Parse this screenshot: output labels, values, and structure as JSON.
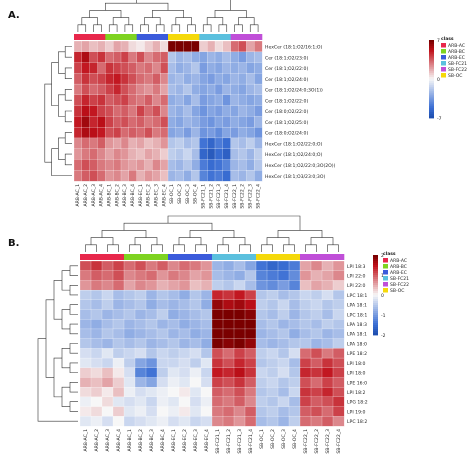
{
  "panels": [
    {
      "label": "A.",
      "chart_data": {
        "type": "heatmap",
        "title": "",
        "columns": [
          "ARB-AC_1",
          "ARB-AC_2",
          "ARB-AC_3",
          "ARB-AC_4",
          "ARB-BC_1",
          "ARB-BC_2",
          "ARB-BC_3",
          "ARB-BC_4",
          "ARB-EC_1",
          "ARB-EC_2",
          "ARB-EC_3",
          "ARB-EC_4",
          "SB-OC_1",
          "SB-OC_2",
          "SB-OC_3",
          "SB-OC_4",
          "SB-FC21_1",
          "SB-FC21_2",
          "SB-FC21_3",
          "SB-FC21_4",
          "SB-FC22_1",
          "SB-FC22_2",
          "SB-FC22_3",
          "SB-FC22_4"
        ],
        "column_class": [
          "ARB-AC",
          "ARB-AC",
          "ARB-AC",
          "ARB-AC",
          "ARB-BC",
          "ARB-BC",
          "ARB-BC",
          "ARB-BC",
          "ARB-EC",
          "ARB-EC",
          "ARB-EC",
          "ARB-EC",
          "SB-OC",
          "SB-OC",
          "SB-OC",
          "SB-OC",
          "SB-FC21",
          "SB-FC21",
          "SB-FC21",
          "SB-FC21",
          "SB-FC22",
          "SB-FC22",
          "SB-FC22",
          "SB-FC22"
        ],
        "rows": [
          "HexCer (18:1;O2/16:1;O)",
          "Cer (18:1;O2/23:0)",
          "Cer (18:1;O2/22:0)",
          "Cer (18:1;O2/24:0)",
          "Cer (18:1;O2/24:0;3O(1))",
          "Cer (18:1;O2/22:0)",
          "Cer (18:0;O2/22:0)",
          "Cer (18:1;O2/25:0)",
          "Cer (18:0;O2/24:0)",
          "HexCer (18:1;O2/22:0;O)",
          "HexCer (18:1;O2/24:0;O)",
          "HexCer (18:1;O2/22:0;3O(2O))",
          "HexCer (18:1;O3/23:0;3O)"
        ],
        "values": [
          [
            0.5,
            0.6,
            0.4,
            0.5,
            0.3,
            0.6,
            0.5,
            0.2,
            0.1,
            0.3,
            0.5,
            0.2,
            3.5,
            4.2,
            3.8,
            3.0,
            0.3,
            0.5,
            0.2,
            0.4,
            1.0,
            1.2,
            0.6,
            0.9
          ],
          [
            1.5,
            1.8,
            1.2,
            1.4,
            1.0,
            1.1,
            1.3,
            0.9,
            1.2,
            0.8,
            1.0,
            1.1,
            -0.6,
            -0.8,
            -0.7,
            -0.9,
            -1.0,
            -0.8,
            -0.9,
            -0.7,
            -0.9,
            -1.1,
            -0.8,
            -0.7
          ],
          [
            1.3,
            1.6,
            1.5,
            1.0,
            1.4,
            1.3,
            1.2,
            1.1,
            0.9,
            1.0,
            0.8,
            1.2,
            -0.7,
            -0.9,
            -0.8,
            -0.6,
            -1.1,
            -0.9,
            -1.0,
            -0.8,
            -0.9,
            -0.8,
            -1.0,
            -0.9
          ],
          [
            1.1,
            1.4,
            1.2,
            1.3,
            1.5,
            1.6,
            1.4,
            1.2,
            1.0,
            0.9,
            1.1,
            0.8,
            -0.8,
            -0.7,
            -0.9,
            -0.8,
            -1.0,
            -1.1,
            -0.9,
            -1.0,
            -0.8,
            -0.9,
            -0.7,
            -1.0
          ],
          [
            0.9,
            1.2,
            1.0,
            1.1,
            1.3,
            1.5,
            1.2,
            1.0,
            0.8,
            0.7,
            0.9,
            0.6,
            -0.7,
            -0.8,
            -0.6,
            -0.9,
            -1.0,
            -0.9,
            -1.1,
            -0.8,
            -0.9,
            -1.0,
            -0.8,
            -0.7
          ],
          [
            1.2,
            1.5,
            1.3,
            1.4,
            1.1,
            1.2,
            1.3,
            1.0,
            0.9,
            1.1,
            0.8,
            1.0,
            -0.9,
            -0.8,
            -1.0,
            -0.7,
            -1.1,
            -1.0,
            -0.9,
            -1.2,
            -0.8,
            -0.9,
            -1.0,
            -0.9
          ],
          [
            1.4,
            1.7,
            1.6,
            1.3,
            1.2,
            1.0,
            1.1,
            0.9,
            1.3,
            1.0,
            1.2,
            0.8,
            -0.8,
            -0.9,
            -0.7,
            -1.0,
            -1.2,
            -1.0,
            -1.1,
            -0.9,
            -1.0,
            -0.8,
            -0.9,
            -1.1
          ],
          [
            1.6,
            1.9,
            1.5,
            1.7,
            1.3,
            1.1,
            1.2,
            1.0,
            1.1,
            0.9,
            1.0,
            1.2,
            -0.9,
            -1.0,
            -0.8,
            -0.9,
            -1.1,
            -1.2,
            -1.0,
            -1.1,
            -0.9,
            -1.0,
            -1.1,
            -0.8
          ],
          [
            1.5,
            1.8,
            1.7,
            1.6,
            1.2,
            1.3,
            1.0,
            1.1,
            1.0,
            1.2,
            0.9,
            1.0,
            -1.0,
            -0.9,
            -1.1,
            -0.8,
            -1.2,
            -1.1,
            -1.3,
            -1.0,
            -1.1,
            -0.9,
            -1.0,
            -1.2
          ],
          [
            0.8,
            1.0,
            0.9,
            1.1,
            0.7,
            0.6,
            0.8,
            0.5,
            0.6,
            0.4,
            0.5,
            0.7,
            -0.6,
            -0.5,
            -0.7,
            -0.6,
            -1.6,
            -1.8,
            -1.5,
            -1.7,
            -0.6,
            -0.7,
            -0.5,
            -0.8
          ],
          [
            0.7,
            0.9,
            1.0,
            0.8,
            0.6,
            0.8,
            0.7,
            0.5,
            0.4,
            0.6,
            0.5,
            0.3,
            -0.5,
            -0.6,
            -0.4,
            -0.7,
            -1.8,
            -2.0,
            -1.7,
            -1.9,
            -0.7,
            -0.6,
            -0.8,
            -0.5
          ],
          [
            1.0,
            1.2,
            1.1,
            0.9,
            0.8,
            0.9,
            0.7,
            0.6,
            0.7,
            0.5,
            0.8,
            0.6,
            -0.7,
            -0.8,
            -0.6,
            -0.9,
            -1.5,
            -1.7,
            -1.6,
            -1.4,
            -0.8,
            -0.7,
            -0.9,
            -0.6
          ],
          [
            0.9,
            1.1,
            1.2,
            1.0,
            0.7,
            0.8,
            0.6,
            0.9,
            0.5,
            0.7,
            0.6,
            0.4,
            -0.8,
            -0.7,
            -0.9,
            -0.6,
            -1.4,
            -1.6,
            -1.5,
            -1.7,
            -0.7,
            -0.8,
            -0.6,
            -0.9
          ]
        ],
        "colorbar": {
          "range": [
            -7,
            7
          ],
          "ticks": [
            "7",
            "0",
            "-7"
          ]
        },
        "legend": {
          "title": "class",
          "placement": "right"
        }
      }
    },
    {
      "label": "B.",
      "chart_data": {
        "type": "heatmap",
        "title": "",
        "columns": [
          "ARB-AC_1",
          "ARB-AC_2",
          "ARB-AC_3",
          "ARB-AC_4",
          "ARB-BC_1",
          "ARB-BC_2",
          "ARB-BC_3",
          "ARB-BC_4",
          "ARB-EC_1",
          "ARB-EC_2",
          "ARB-EC_3",
          "ARB-EC_4",
          "SB-FC21_1",
          "SB-FC21_2",
          "SB-FC21_3",
          "SB-FC21_4",
          "SB-OC_1",
          "SB-OC_2",
          "SB-OC_3",
          "SB-OC_4",
          "SB-FC22_1",
          "SB-FC22_2",
          "SB-FC22_3",
          "SB-FC22_4"
        ],
        "column_class": [
          "ARB-AC",
          "ARB-AC",
          "ARB-AC",
          "ARB-AC",
          "ARB-BC",
          "ARB-BC",
          "ARB-BC",
          "ARB-BC",
          "ARB-EC",
          "ARB-EC",
          "ARB-EC",
          "ARB-EC",
          "SB-FC21",
          "SB-FC21",
          "SB-FC21",
          "SB-FC21",
          "SB-OC",
          "SB-OC",
          "SB-OC",
          "SB-OC",
          "SB-FC22",
          "SB-FC22",
          "SB-FC22",
          "SB-FC22"
        ],
        "rows": [
          "LPI 18:3",
          "LPI 22:0",
          "LPI 22:0",
          "LPC 18:1",
          "LPA 18:1",
          "LPC 18:1",
          "LPA 18:3",
          "LPA 18:1",
          "LPA 18:0",
          "LPE 18:2",
          "LPI 18:0",
          "LPI 18:0",
          "LPE 16:0",
          "LPI 18:2",
          "LPG 18:2",
          "LPI 19:0",
          "LPC 18:2"
        ],
        "values": [
          [
            1.2,
            1.4,
            1.1,
            1.3,
            1.0,
            1.2,
            0.9,
            1.1,
            0.8,
            1.0,
            0.9,
            0.7,
            -0.8,
            -0.9,
            -0.7,
            -1.0,
            -1.6,
            -1.8,
            -1.7,
            -1.5,
            0.6,
            0.8,
            0.5,
            0.7
          ],
          [
            0.9,
            1.1,
            1.0,
            1.2,
            0.8,
            0.9,
            1.0,
            0.7,
            0.9,
            0.8,
            0.6,
            0.7,
            -0.7,
            -0.8,
            -0.9,
            -0.6,
            -1.4,
            -1.5,
            -1.6,
            -1.3,
            0.7,
            0.5,
            0.6,
            0.8
          ],
          [
            0.7,
            0.9,
            0.8,
            1.0,
            0.6,
            0.8,
            0.7,
            0.5,
            0.6,
            0.7,
            0.4,
            0.5,
            -0.5,
            -0.6,
            -0.4,
            -0.7,
            -1.2,
            -1.3,
            -1.1,
            -1.4,
            0.4,
            0.6,
            0.5,
            0.3
          ],
          [
            -0.5,
            -0.6,
            -0.4,
            -0.7,
            -0.6,
            -0.5,
            -0.8,
            -0.6,
            -0.7,
            -0.9,
            -0.6,
            -0.8,
            1.5,
            1.4,
            1.6,
            1.3,
            -0.6,
            -0.5,
            -0.7,
            -0.6,
            -0.4,
            -0.5,
            -0.3,
            -0.6
          ],
          [
            -0.6,
            -0.7,
            -0.5,
            -0.8,
            -0.7,
            -0.6,
            -0.9,
            -0.7,
            -0.8,
            -0.7,
            -0.6,
            -0.9,
            2.0,
            1.8,
            1.9,
            1.7,
            -0.5,
            -0.6,
            -0.4,
            -0.7,
            -0.5,
            -0.4,
            -0.6,
            -0.5
          ],
          [
            -0.7,
            -0.6,
            -0.8,
            -0.7,
            -0.6,
            -0.8,
            -0.7,
            -0.5,
            -0.9,
            -0.8,
            -0.7,
            -0.6,
            2.4,
            2.2,
            2.3,
            2.1,
            -0.6,
            -0.7,
            -0.5,
            -0.8,
            -0.6,
            -0.5,
            -0.7,
            -0.4
          ],
          [
            -0.8,
            -0.9,
            -0.7,
            -0.6,
            -0.8,
            -0.7,
            -0.6,
            -0.8,
            -0.7,
            -0.9,
            -0.8,
            -0.7,
            2.8,
            2.6,
            2.7,
            2.5,
            -0.7,
            -0.6,
            -0.8,
            -0.7,
            -0.6,
            -0.7,
            -0.5,
            -0.6
          ],
          [
            -0.7,
            -0.8,
            -0.6,
            -0.7,
            -0.9,
            -0.8,
            -0.7,
            -0.6,
            -0.8,
            -0.7,
            -0.9,
            -0.8,
            2.6,
            2.5,
            2.4,
            2.3,
            -0.8,
            -0.7,
            -0.6,
            -0.9,
            -0.7,
            -0.6,
            -0.8,
            -0.7
          ],
          [
            -0.6,
            -0.7,
            -0.8,
            -0.6,
            -0.7,
            -0.6,
            -0.8,
            -0.7,
            -0.6,
            -0.8,
            -0.7,
            -0.9,
            2.2,
            2.1,
            2.3,
            2.0,
            -0.7,
            -0.8,
            -0.7,
            -0.6,
            -0.6,
            -0.8,
            -0.7,
            -0.5
          ],
          [
            -0.3,
            -0.4,
            -0.2,
            -0.5,
            -0.4,
            -0.3,
            -0.6,
            -0.4,
            -0.5,
            -0.4,
            -0.3,
            -0.6,
            1.2,
            1.0,
            1.3,
            1.1,
            -0.5,
            -0.4,
            -0.6,
            -0.3,
            1.0,
            1.2,
            0.9,
            1.1
          ],
          [
            -0.2,
            -0.3,
            -0.4,
            -0.1,
            -0.5,
            -1.0,
            -1.2,
            -0.4,
            -0.4,
            -0.3,
            -0.5,
            -0.2,
            1.4,
            1.2,
            1.5,
            1.3,
            -0.6,
            -0.5,
            -0.4,
            -0.7,
            1.3,
            1.1,
            1.4,
            1.2
          ],
          [
            0.3,
            0.2,
            0.4,
            0.1,
            -0.3,
            -1.4,
            -1.6,
            -0.5,
            -0.2,
            -0.3,
            -0.1,
            -0.4,
            1.6,
            1.5,
            1.7,
            1.4,
            -0.4,
            -0.5,
            -0.3,
            -0.6,
            1.5,
            1.4,
            1.6,
            1.3
          ],
          [
            0.5,
            0.4,
            0.6,
            0.3,
            -0.2,
            -0.8,
            -1.0,
            -0.3,
            -0.1,
            -0.2,
            0.0,
            -0.3,
            1.3,
            1.2,
            1.4,
            1.1,
            -0.5,
            -0.4,
            -0.6,
            -0.5,
            1.2,
            1.0,
            1.3,
            1.1
          ],
          [
            0.2,
            0.3,
            0.1,
            0.4,
            -0.1,
            -0.3,
            -0.2,
            -0.1,
            0.0,
            0.1,
            -0.2,
            0.0,
            1.1,
            1.0,
            1.2,
            0.9,
            -0.6,
            -0.5,
            -0.7,
            -0.4,
            1.4,
            1.3,
            1.5,
            1.2
          ],
          [
            -0.1,
            0.0,
            0.2,
            -0.2,
            -0.3,
            -0.2,
            -0.4,
            -0.1,
            -0.2,
            0.0,
            -0.3,
            -0.1,
            1.0,
            0.9,
            1.1,
            0.8,
            -0.5,
            -0.6,
            -0.4,
            -0.7,
            1.3,
            1.1,
            1.2,
            1.4
          ],
          [
            0.1,
            0.2,
            0.0,
            0.3,
            -0.2,
            -0.1,
            -0.3,
            0.0,
            -0.1,
            0.1,
            -0.2,
            0.0,
            0.9,
            1.0,
            0.8,
            1.1,
            -0.6,
            -0.5,
            -0.7,
            -0.6,
            1.1,
            1.2,
            1.0,
            1.3
          ],
          [
            -0.2,
            -0.1,
            -0.3,
            0.0,
            -0.4,
            -0.3,
            -0.2,
            -0.1,
            -0.3,
            -0.2,
            -0.4,
            -0.3,
            0.8,
            0.9,
            0.7,
            1.0,
            -0.7,
            -0.6,
            -0.8,
            -0.5,
            1.0,
            0.9,
            1.1,
            0.8
          ]
        ],
        "colorbar": {
          "range": [
            -2,
            2
          ],
          "ticks": [
            "2",
            "1",
            "0",
            "-1",
            "-2"
          ]
        },
        "legend": {
          "title": "class",
          "placement": "right"
        }
      }
    }
  ],
  "class_colors": {
    "ARB-AC": "#e8274b",
    "ARB-BC": "#7ed321",
    "ARB-EC": "#3b5bdb",
    "SB-FC21": "#5bc0de",
    "SB-FC22": "#c04fd8",
    "SB-OC": "#f5d90a"
  },
  "legend_order_A": [
    "ARB-AC",
    "ARB-BC",
    "ARB-EC",
    "SB-FC21",
    "SB-FC22",
    "SB-OC"
  ],
  "legend_order_B": [
    "ARB-AC",
    "ARB-BC",
    "ARB-EC",
    "SB-FC21",
    "SB-FC22",
    "SB-OC"
  ],
  "colormap": {
    "low": "#3b6fd4",
    "mid": "#f7f7f7",
    "high": "#c0101a",
    "lowest": "#1f4fb0",
    "highest": "#7a0000"
  }
}
